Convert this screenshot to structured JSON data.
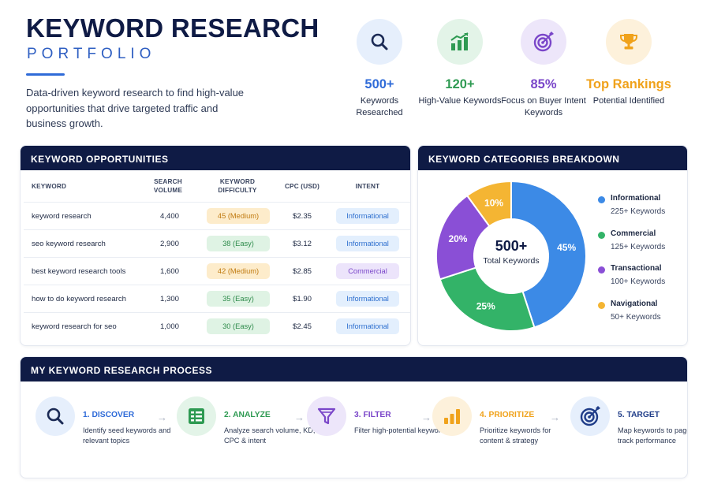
{
  "header": {
    "title": "KEYWORD RESEARCH",
    "subtitle": "PORTFOLIO",
    "intro": "Data-driven keyword research to find high-value opportunities that drive targeted traffic and business growth."
  },
  "stats": [
    {
      "icon": "search-icon",
      "value": "500+",
      "label": "Keywords Researched",
      "color": "#2f6bd8",
      "bg": "#e6effc"
    },
    {
      "icon": "bar-chart-icon",
      "value": "120+",
      "label": "High-Value Keywords",
      "color": "#2e9a52",
      "bg": "#e3f4e8"
    },
    {
      "icon": "target-icon",
      "value": "85%",
      "label": "Focus on Buyer Intent Keywords",
      "color": "#7a46c9",
      "bg": "#ede6fa"
    },
    {
      "icon": "trophy-icon",
      "value": "Top Rankings",
      "label": "Potential Identified",
      "color": "#f0a21b",
      "bg": "#fdf1db"
    }
  ],
  "table": {
    "title": "KEYWORD OPPORTUNITIES",
    "columns": [
      "KEYWORD",
      "SEARCH VOLUME",
      "KEYWORD DIFFICULTY",
      "CPC (USD)",
      "INTENT"
    ],
    "rows": [
      {
        "keyword": "keyword research",
        "volume": "4,400",
        "difficulty": "45 (Medium)",
        "difficulty_level": "medium",
        "cpc": "$2.35",
        "intent": "Informational",
        "intent_type": "info"
      },
      {
        "keyword": "seo keyword research",
        "volume": "2,900",
        "difficulty": "38 (Easy)",
        "difficulty_level": "easy",
        "cpc": "$3.12",
        "intent": "Informational",
        "intent_type": "info"
      },
      {
        "keyword": "best keyword research tools",
        "volume": "1,600",
        "difficulty": "42 (Medium)",
        "difficulty_level": "medium",
        "cpc": "$2.85",
        "intent": "Commercial",
        "intent_type": "comm"
      },
      {
        "keyword": "how to do keyword research",
        "volume": "1,300",
        "difficulty": "35 (Easy)",
        "difficulty_level": "easy",
        "cpc": "$1.90",
        "intent": "Informational",
        "intent_type": "info"
      },
      {
        "keyword": "keyword research for seo",
        "volume": "1,000",
        "difficulty": "30 (Easy)",
        "difficulty_level": "easy",
        "cpc": "$2.45",
        "intent": "Informational",
        "intent_type": "info"
      }
    ]
  },
  "categories": {
    "title": "KEYWORD CATEGORIES BREAKDOWN",
    "center_value": "500+",
    "center_label": "Total Keywords",
    "items": [
      {
        "name": "Informational",
        "count": "225+ Keywords",
        "percent": 45,
        "label": "45%",
        "color": "#3c8ae6"
      },
      {
        "name": "Commercial",
        "count": "125+ Keywords",
        "percent": 25,
        "label": "25%",
        "color": "#33b368"
      },
      {
        "name": "Transactional",
        "count": "100+ Keywords",
        "percent": 20,
        "label": "20%",
        "color": "#8a4fd6"
      },
      {
        "name": "Navigational",
        "count": "50+ Keywords",
        "percent": 10,
        "label": "10%",
        "color": "#f4b533"
      }
    ]
  },
  "process": {
    "title": "MY KEYWORD RESEARCH PROCESS",
    "steps": [
      {
        "icon": "search-icon",
        "title": "1. DISCOVER",
        "desc": "Identify seed keywords and relevant topics",
        "color": "#2f6bd8",
        "bg": "#e6effc"
      },
      {
        "icon": "spreadsheet-icon",
        "title": "2. ANALYZE",
        "desc": "Analyze search volume, KD, CPC & intent",
        "color": "#2e9a52",
        "bg": "#e3f4e8"
      },
      {
        "icon": "filter-icon",
        "title": "3. FILTER",
        "desc": "Filter high-potential keywords",
        "color": "#7a46c9",
        "bg": "#ede6fa"
      },
      {
        "icon": "bar-chart-icon",
        "title": "4. PRIORITIZE",
        "desc": "Prioritize keywords for content & strategy",
        "color": "#f0a21b",
        "bg": "#fdf1db"
      },
      {
        "icon": "target-icon",
        "title": "5. TARGET",
        "desc": "Map keywords to pages & track performance",
        "color": "#1f3c88",
        "bg": "#e6effc"
      }
    ]
  }
}
